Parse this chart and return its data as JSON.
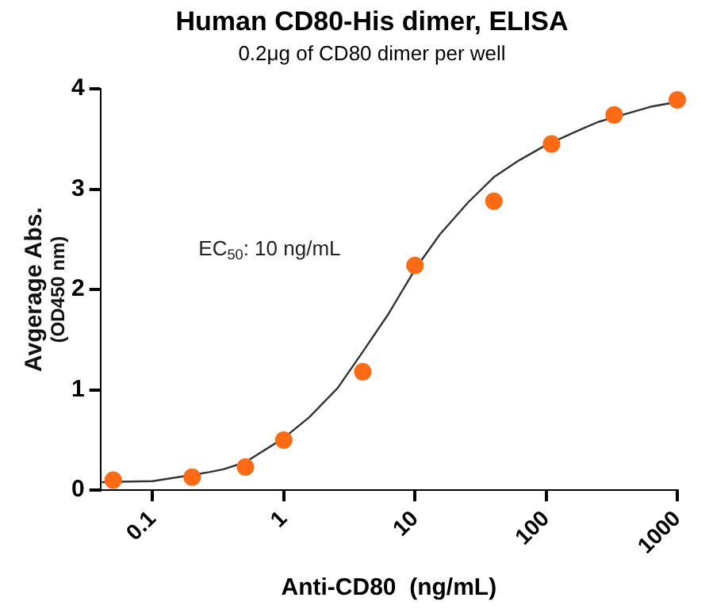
{
  "chart_data": {
    "type": "scatter",
    "title": "Human CD80-His dimer, ELISA",
    "subtitle": "0.2μg of CD80 dimer per well",
    "xlabel": "Anti-CD80  (ng/mL)",
    "ylabel": "Avgerage Abs.\n(OD450 nm)",
    "annotations": [
      "EC$_{50}$: 10 ng/mL"
    ],
    "log": "x",
    "xlim": [
      0.04,
      1000
    ],
    "xticks": [
      0.1,
      1,
      10,
      100,
      1000
    ],
    "ylim": [
      0,
      4
    ],
    "yticks": [
      0,
      1,
      2,
      3,
      4
    ],
    "grid": false,
    "legend": false,
    "marker": "circle",
    "series": [
      {
        "type": "scatter",
        "color": "#ff6a13",
        "x": [
          0.05,
          0.2,
          0.51,
          1,
          4,
          10,
          40,
          110,
          330,
          1000
        ],
        "values": [
          0.1,
          0.13,
          0.23,
          0.5,
          1.18,
          2.24,
          2.88,
          3.45,
          3.74,
          3.89
        ]
      },
      {
        "type": "line",
        "color": "#333333",
        "marker": "none",
        "x": [
          0.041,
          0.1,
          0.27,
          0.35,
          0.51,
          1,
          1.57,
          2.58,
          4,
          6.3,
          10,
          15.5,
          25.5,
          40,
          62.7,
          100,
          187,
          250,
          620,
          1000
        ],
        "values": [
          0.08,
          0.09,
          0.18,
          0.21,
          0.28,
          0.52,
          0.73,
          1.02,
          1.38,
          1.76,
          2.2,
          2.55,
          2.87,
          3.12,
          3.29,
          3.44,
          3.6,
          3.67,
          3.82,
          3.87
        ]
      }
    ]
  }
}
